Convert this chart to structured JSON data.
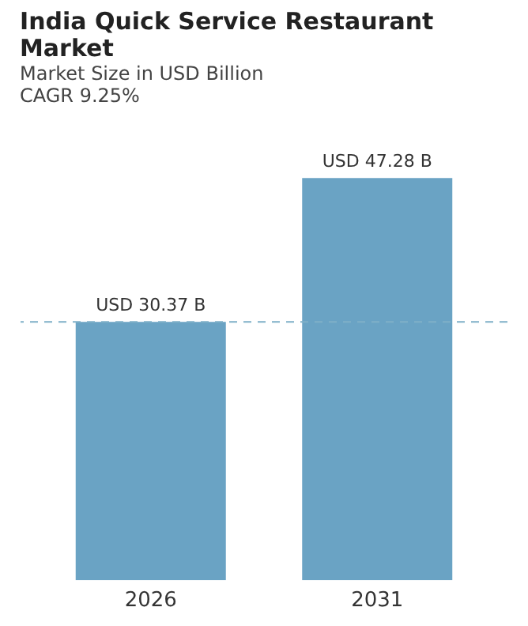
{
  "chart_data": {
    "type": "bar",
    "title": "India Quick Service Restaurant Market",
    "subtitle": "Market Size in USD Billion",
    "annotations": [
      "CAGR 9.25%"
    ],
    "categories": [
      "2026",
      "2031"
    ],
    "values": [
      30.37,
      47.28
    ],
    "value_labels": [
      "USD 30.37 B",
      "USD 47.28 B"
    ],
    "color": "#6aa3c4",
    "ref_lines": [
      {
        "axis": "y",
        "value": 30.37,
        "label": null,
        "color": "#7fb0c8",
        "line_style": "dashed"
      }
    ],
    "grid": false
  }
}
